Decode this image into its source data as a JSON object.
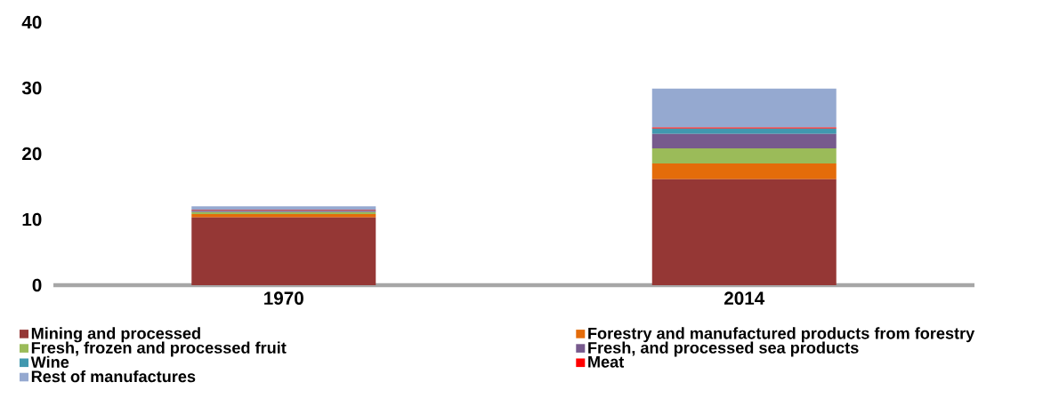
{
  "chart_data": {
    "type": "bar",
    "stacked": true,
    "categories": [
      "1970",
      "2014"
    ],
    "series": [
      {
        "name": "Mining and processed",
        "color": "#953735",
        "values": [
          10.3,
          16.1
        ]
      },
      {
        "name": "Forestry and manufactured products from forestry",
        "color": "#e46c0a",
        "values": [
          0.5,
          2.4
        ]
      },
      {
        "name": "Fresh, frozen and processed fruit",
        "color": "#9bbb59",
        "values": [
          0.3,
          2.3
        ]
      },
      {
        "name": "Fresh, and processed sea products",
        "color": "#775a8d",
        "values": [
          0.2,
          2.2
        ]
      },
      {
        "name": "Wine",
        "color": "#4198af",
        "values": [
          0.1,
          0.8
        ]
      },
      {
        "name": "Meat",
        "color": "#ff0000",
        "values": [
          0.1,
          0.2
        ]
      },
      {
        "name": "Rest of manufactures",
        "color": "#95a9d0",
        "values": [
          0.5,
          5.9
        ]
      }
    ],
    "ylim": [
      0,
      40
    ],
    "yticks": [
      0,
      10,
      20,
      30,
      40
    ],
    "grid": false,
    "legend": "bottom"
  }
}
